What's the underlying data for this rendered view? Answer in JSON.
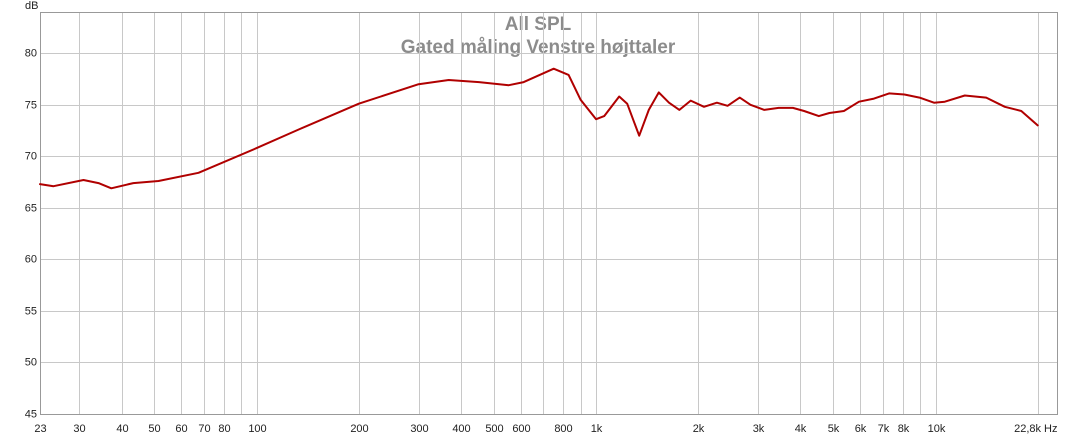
{
  "chart_data": {
    "type": "line",
    "title": "All SPL",
    "subtitle": "Gated måling Venstre højttaler",
    "y_label": "dB",
    "log_x": true,
    "grid": true,
    "xlim": [
      23,
      22800
    ],
    "ylim": [
      45,
      84
    ],
    "xticks": [
      23,
      30,
      40,
      50,
      60,
      70,
      80,
      100,
      200,
      300,
      400,
      500,
      600,
      800,
      {
        "value": 1000,
        "label": "1k"
      },
      {
        "value": 2000,
        "label": "2k"
      },
      {
        "value": 3000,
        "label": "3k"
      },
      {
        "value": 4000,
        "label": "4k"
      },
      {
        "value": 5000,
        "label": "5k"
      },
      {
        "value": 6000,
        "label": "6k"
      },
      {
        "value": 7000,
        "label": "7k"
      },
      {
        "value": 8000,
        "label": "8k"
      },
      {
        "value": 10000,
        "label": "10k"
      },
      {
        "value": 22800,
        "label": "22,8k Hz"
      }
    ],
    "x_minor_grid": [
      90,
      700,
      900,
      9000,
      20000
    ],
    "yticks": [
      45,
      50,
      55,
      60,
      65,
      70,
      75,
      80
    ],
    "x": [
      23,
      25.2,
      30.9,
      34.2,
      37.3,
      43.3,
      51.4,
      67.4,
      100,
      133,
      200,
      300,
      368,
      452,
      553,
      612,
      750,
      830,
      900,
      1000,
      1057,
      1170,
      1235,
      1340,
      1430,
      1530,
      1640,
      1760,
      1900,
      2080,
      2270,
      2440,
      2650,
      2850,
      3130,
      3450,
      3800,
      4100,
      4530,
      4870,
      5370,
      5950,
      6590,
      7300,
      8100,
      8970,
      9900,
      10650,
      12200,
      14100,
      16000,
      17900,
      20000
    ],
    "series": [
      {
        "name": "All SPL",
        "color": "#b00000",
        "values": [
          67.3,
          67.1,
          67.7,
          67.4,
          66.9,
          67.4,
          67.6,
          68.4,
          70.8,
          72.6,
          75.1,
          77.0,
          77.4,
          77.2,
          76.9,
          77.2,
          78.5,
          77.9,
          75.5,
          73.6,
          73.9,
          75.8,
          75.1,
          72.0,
          74.5,
          76.2,
          75.2,
          74.5,
          75.4,
          74.8,
          75.2,
          74.9,
          75.7,
          75.0,
          74.5,
          74.7,
          74.7,
          74.4,
          73.9,
          74.2,
          74.4,
          75.3,
          75.6,
          76.1,
          76.0,
          75.7,
          75.2,
          75.3,
          75.9,
          75.7,
          74.8,
          74.4,
          73.0
        ]
      }
    ]
  }
}
